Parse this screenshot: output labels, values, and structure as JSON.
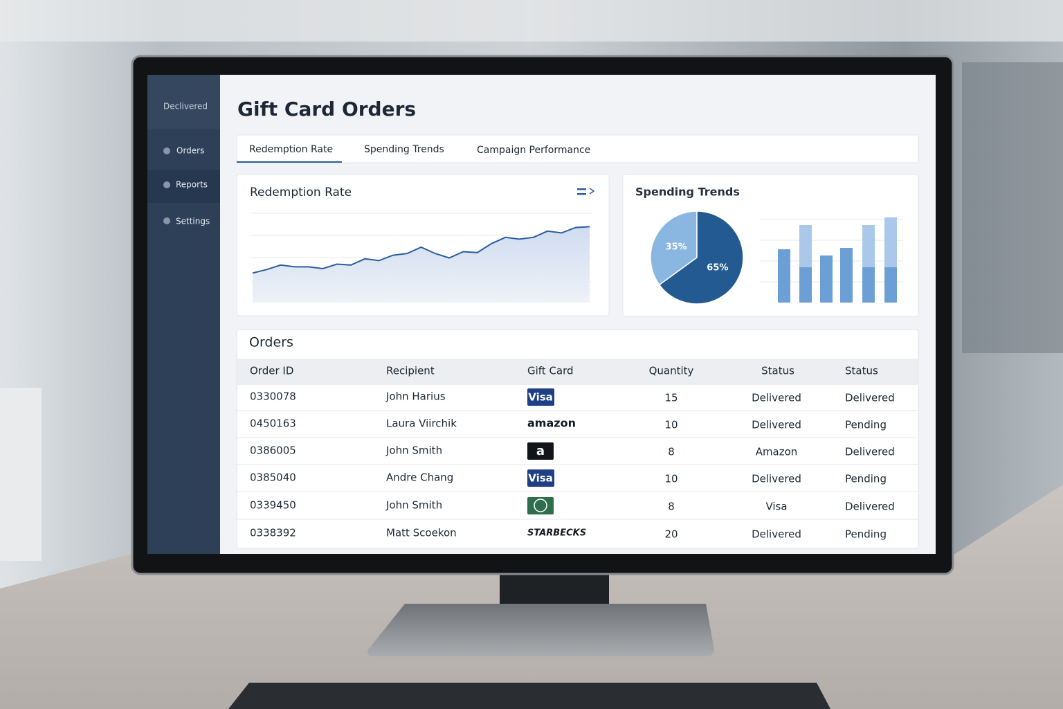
{
  "sidebar": {
    "brand": "Declivered",
    "items": [
      "Orders",
      "Reports",
      "Settings"
    ]
  },
  "header": {
    "title": "Gift Card Orders"
  },
  "tabs": [
    "Redemption Rate",
    "Spending Trends",
    "Campaign Performance"
  ],
  "chart_data": [
    {
      "type": "line",
      "title": "Redemption Rate",
      "color": "#2a5d9c",
      "values": [
        33,
        37,
        42,
        40,
        40,
        38,
        43,
        42,
        49,
        47,
        53,
        55,
        62,
        55,
        50,
        57,
        56,
        66,
        73,
        71,
        73,
        80,
        78,
        84,
        85
      ],
      "ylim": [
        0,
        100
      ]
    },
    {
      "type": "pie",
      "title": "Spending Trends",
      "values": [
        35,
        65
      ],
      "value_labels": [
        "35%",
        "65%"
      ],
      "colors": [
        "#8ab6e2",
        "#245a92"
      ]
    },
    {
      "type": "bar",
      "ylim": [
        0,
        130
      ],
      "series": [
        {
          "color": "#6c9fd6",
          "values": [
            77,
            51,
            68,
            79,
            51,
            51
          ]
        },
        {
          "color": "#a9c8ea",
          "values": [
            0,
            61,
            0,
            0,
            61,
            72
          ]
        }
      ]
    }
  ],
  "orders": {
    "title": "Orders",
    "columns": [
      "Order ID",
      "Recipient",
      "Gift Card",
      "Quantity",
      "Status",
      "Status"
    ],
    "rows": [
      [
        "0330078",
        "John Harius",
        "Visa",
        15,
        "Delivered",
        "Delivered"
      ],
      [
        "0450163",
        "Laura Viirchik",
        "amazon",
        10,
        "Delivered",
        "Pending"
      ],
      [
        "0386005",
        "John Smith",
        "a",
        8,
        "Amazon",
        "Delivered"
      ],
      [
        "0385040",
        "Andre Chang",
        "Visa",
        10,
        "Delivered",
        "Pending"
      ],
      [
        "0339450",
        "John Smith",
        null,
        8,
        "Visa",
        "Delivered"
      ],
      [
        "0338392",
        "Matt Scoekon",
        "STARBECKS",
        20,
        "Delivered",
        "Pending"
      ]
    ]
  }
}
